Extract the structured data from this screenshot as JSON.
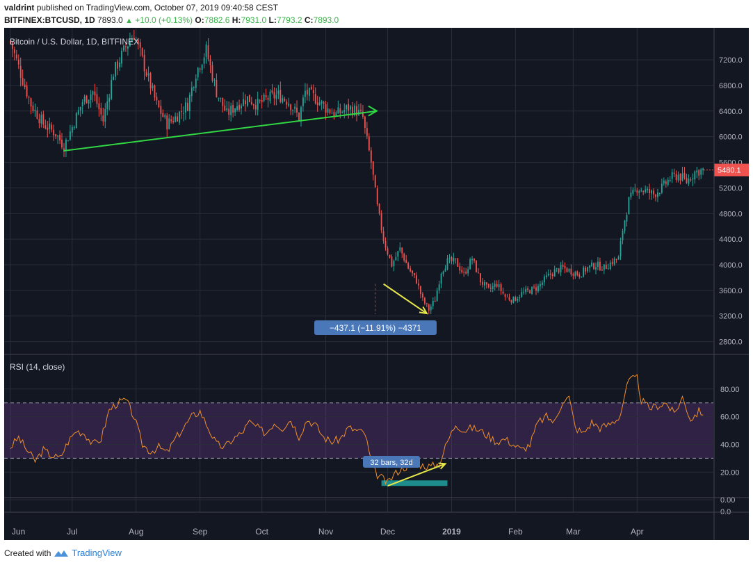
{
  "header": {
    "author": "valdrint",
    "published_text": "published on TradingView.com, October 07, 2019 09:40:58 CEST",
    "symbol": "BITFINEX:BTCUSD, 1D",
    "last": "7893.0",
    "change": "+10.0 (+0.13%)",
    "o_label": "O:",
    "o_val": "7882.6",
    "h_label": "H:",
    "h_val": "7931.0",
    "l_label": "L:",
    "l_val": "7793.2",
    "c_label": "C:",
    "c_val": "7893.0"
  },
  "footer": {
    "created_with": "Created with",
    "brand": "TradingView"
  },
  "colors": {
    "background": "#131722",
    "up": "#26a69a",
    "down": "#ef5350",
    "support_line": "#31d843",
    "arrow": "#e8e84a",
    "rsi_line": "#f0902a",
    "rsi_band": "#7b3fa0",
    "price_tag": "#ef5350",
    "measure_label": "#4a77b8"
  },
  "chart_data": [
    {
      "type": "candlestick",
      "title": "Bitcoin / U.S. Dollar, 1D, BITFINEX",
      "ylim": [
        2600,
        7700
      ],
      "y_ticks": [
        "7200.0",
        "6800.0",
        "6400.0",
        "6000.0",
        "5600.0",
        "5200.0",
        "4800.0",
        "4400.0",
        "4000.0",
        "3600.0",
        "3200.0",
        "2800.0"
      ],
      "y_tick_values": [
        7200,
        6800,
        6400,
        6000,
        5600,
        5200,
        4800,
        4400,
        4000,
        3600,
        3200,
        2800
      ],
      "x_ticks": [
        "Jun",
        "Jul",
        "Aug",
        "Sep",
        "Oct",
        "Nov",
        "Dec",
        "2019",
        "Feb",
        "Mar",
        "Apr"
      ],
      "x_tick_days": [
        0,
        30,
        61,
        92,
        122,
        153,
        183,
        214,
        245,
        273,
        304
      ],
      "x_range_days": [
        -3,
        341
      ],
      "last_price_label": "5480.1",
      "last_price": 5480.1,
      "annotations": {
        "support_line": [
          {
            "day": 26,
            "price": 5780
          },
          {
            "day": 173,
            "price": 6380
          }
        ],
        "measure_label": "−437.1 (−11.91%) −4371",
        "decline_arrow": [
          {
            "day": 181,
            "price": 3700
          },
          {
            "day": 202,
            "price": 3240
          }
        ],
        "measure_marker": {
          "day": 177,
          "from": 3700,
          "to": 3230
        }
      },
      "waypoints": [
        [
          0,
          7480
        ],
        [
          10,
          6500
        ],
        [
          16,
          6200
        ],
        [
          22,
          6050
        ],
        [
          26,
          5850
        ],
        [
          30,
          6150
        ],
        [
          35,
          6550
        ],
        [
          40,
          6700
        ],
        [
          45,
          6250
        ],
        [
          50,
          7000
        ],
        [
          56,
          7400
        ],
        [
          60,
          7600
        ],
        [
          66,
          7000
        ],
        [
          71,
          6500
        ],
        [
          76,
          6200
        ],
        [
          80,
          6300
        ],
        [
          86,
          6500
        ],
        [
          90,
          7000
        ],
        [
          95,
          7350
        ],
        [
          100,
          6700
        ],
        [
          105,
          6350
        ],
        [
          110,
          6500
        ],
        [
          115,
          6600
        ],
        [
          120,
          6500
        ],
        [
          125,
          6600
        ],
        [
          130,
          6650
        ],
        [
          135,
          6550
        ],
        [
          140,
          6300
        ],
        [
          143,
          6700
        ],
        [
          148,
          6600
        ],
        [
          153,
          6450
        ],
        [
          158,
          6350
        ],
        [
          164,
          6450
        ],
        [
          168,
          6400
        ],
        [
          171,
          6300
        ],
        [
          172,
          6100
        ],
        [
          175,
          5600
        ],
        [
          178,
          4900
        ],
        [
          181,
          4400
        ],
        [
          185,
          4000
        ],
        [
          189,
          4250
        ],
        [
          193,
          3950
        ],
        [
          197,
          3750
        ],
        [
          200,
          3450
        ],
        [
          203,
          3300
        ],
        [
          206,
          3450
        ],
        [
          209,
          3900
        ],
        [
          212,
          4050
        ],
        [
          216,
          4050
        ],
        [
          220,
          3850
        ],
        [
          224,
          4100
        ],
        [
          228,
          3750
        ],
        [
          232,
          3600
        ],
        [
          236,
          3700
        ],
        [
          240,
          3500
        ],
        [
          244,
          3450
        ],
        [
          248,
          3550
        ],
        [
          252,
          3600
        ],
        [
          256,
          3650
        ],
        [
          260,
          3800
        ],
        [
          264,
          3900
        ],
        [
          268,
          3950
        ],
        [
          272,
          3900
        ],
        [
          276,
          3850
        ],
        [
          280,
          3950
        ],
        [
          284,
          4000
        ],
        [
          288,
          3950
        ],
        [
          292,
          4050
        ],
        [
          295,
          4100
        ],
        [
          297,
          4550
        ],
        [
          300,
          5000
        ],
        [
          304,
          5200
        ],
        [
          308,
          5150
        ],
        [
          312,
          5100
        ],
        [
          316,
          5200
        ],
        [
          320,
          5350
        ],
        [
          324,
          5400
        ],
        [
          328,
          5300
        ],
        [
          332,
          5450
        ],
        [
          336,
          5480.1
        ]
      ]
    },
    {
      "type": "line",
      "title": "RSI (14, close)",
      "ylim": [
        -20,
        105
      ],
      "y_ticks": [
        "80.00",
        "60.00",
        "40.00",
        "20.00",
        "0.00",
        "0.0"
      ],
      "y_tick_values": [
        80,
        60,
        40,
        20,
        0
      ],
      "bands": [
        70,
        30
      ],
      "annotations": {
        "bars_label": "32 bars, 32d",
        "bars_range": {
          "from": 180,
          "to": 212,
          "value": 12
        },
        "divergence_arrow": [
          {
            "day": 183,
            "value": 10
          },
          {
            "day": 211,
            "value": 26
          }
        ]
      },
      "waypoints": [
        [
          0,
          38
        ],
        [
          4,
          45
        ],
        [
          8,
          36
        ],
        [
          12,
          28
        ],
        [
          16,
          36
        ],
        [
          20,
          32
        ],
        [
          24,
          30
        ],
        [
          28,
          42
        ],
        [
          32,
          50
        ],
        [
          36,
          48
        ],
        [
          40,
          40
        ],
        [
          44,
          44
        ],
        [
          48,
          65
        ],
        [
          52,
          70
        ],
        [
          56,
          72
        ],
        [
          60,
          60
        ],
        [
          64,
          40
        ],
        [
          68,
          35
        ],
        [
          72,
          38
        ],
        [
          76,
          34
        ],
        [
          80,
          44
        ],
        [
          84,
          52
        ],
        [
          88,
          60
        ],
        [
          92,
          64
        ],
        [
          96,
          52
        ],
        [
          100,
          40
        ],
        [
          104,
          38
        ],
        [
          108,
          44
        ],
        [
          112,
          48
        ],
        [
          116,
          56
        ],
        [
          120,
          52
        ],
        [
          124,
          48
        ],
        [
          128,
          56
        ],
        [
          132,
          52
        ],
        [
          136,
          58
        ],
        [
          140,
          46
        ],
        [
          144,
          58
        ],
        [
          148,
          54
        ],
        [
          152,
          45
        ],
        [
          156,
          42
        ],
        [
          160,
          44
        ],
        [
          164,
          52
        ],
        [
          168,
          50
        ],
        [
          172,
          48
        ],
        [
          174,
          34
        ],
        [
          176,
          22
        ],
        [
          178,
          18
        ],
        [
          180,
          16
        ],
        [
          183,
          12
        ],
        [
          186,
          18
        ],
        [
          189,
          22
        ],
        [
          192,
          24
        ],
        [
          196,
          26
        ],
        [
          200,
          25
        ],
        [
          204,
          24
        ],
        [
          208,
          26
        ],
        [
          212,
          42
        ],
        [
          216,
          55
        ],
        [
          220,
          50
        ],
        [
          224,
          52
        ],
        [
          228,
          50
        ],
        [
          232,
          46
        ],
        [
          236,
          42
        ],
        [
          240,
          44
        ],
        [
          244,
          40
        ],
        [
          248,
          36
        ],
        [
          252,
          40
        ],
        [
          256,
          56
        ],
        [
          260,
          60
        ],
        [
          264,
          56
        ],
        [
          268,
          72
        ],
        [
          271,
          74
        ],
        [
          274,
          52
        ],
        [
          278,
          48
        ],
        [
          282,
          56
        ],
        [
          286,
          52
        ],
        [
          290,
          54
        ],
        [
          294,
          58
        ],
        [
          296,
          62
        ],
        [
          298,
          76
        ],
        [
          300,
          86
        ],
        [
          304,
          88
        ],
        [
          306,
          72
        ],
        [
          310,
          66
        ],
        [
          314,
          68
        ],
        [
          318,
          70
        ],
        [
          322,
          62
        ],
        [
          326,
          74
        ],
        [
          330,
          58
        ],
        [
          334,
          64
        ],
        [
          336,
          63
        ]
      ]
    }
  ]
}
